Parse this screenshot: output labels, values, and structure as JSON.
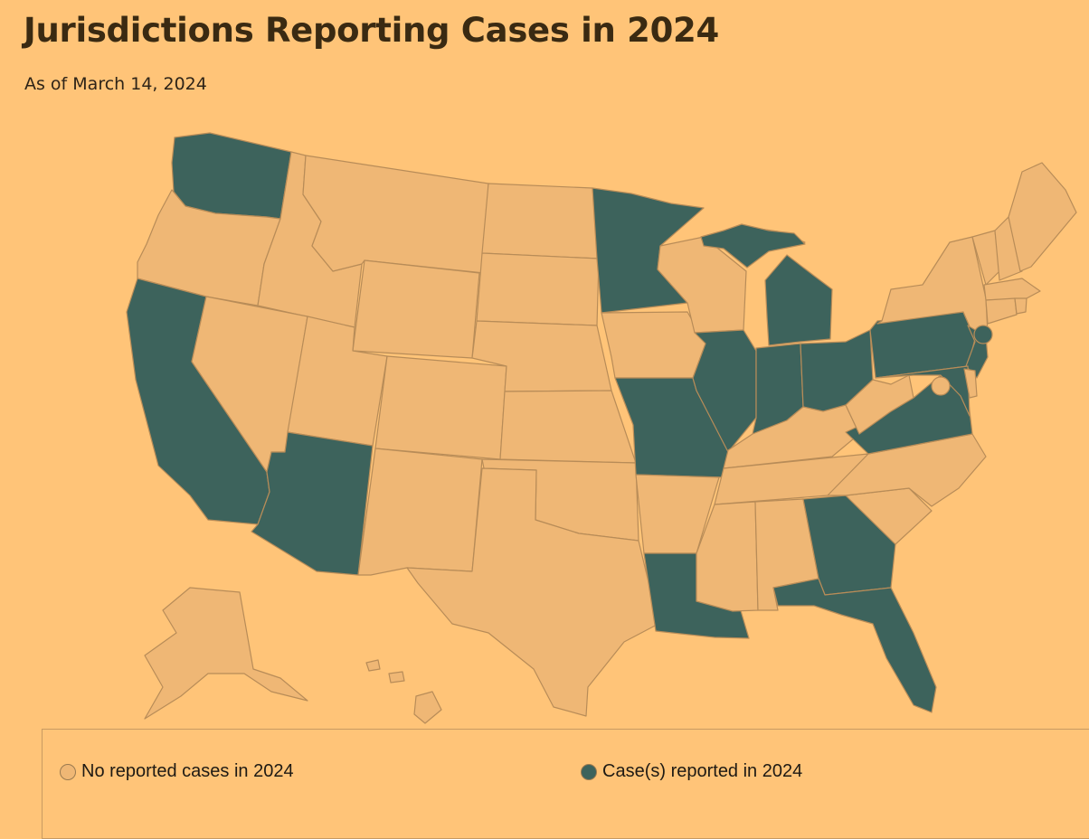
{
  "header": {
    "title": "Jurisdictions Reporting Cases in 2024",
    "subtitle": "As of March 14, 2024"
  },
  "colors": {
    "no_cases": "#efb775",
    "cases": "#3d635c",
    "border": "#b88c58"
  },
  "legend": [
    {
      "key": "no_cases",
      "label": "No reported cases in 2024"
    },
    {
      "key": "cases",
      "label": "Case(s) reported in 2024"
    }
  ],
  "states_with_cases": [
    "WA",
    "CA",
    "AZ",
    "MN",
    "MO",
    "LA",
    "IL",
    "IN",
    "MI",
    "OH",
    "GA",
    "FL",
    "PA",
    "VA",
    "NJ",
    "MD",
    "NYC"
  ],
  "states_no_cases": [
    "OR",
    "ID",
    "MT",
    "WY",
    "NV",
    "UT",
    "CO",
    "NM",
    "TX",
    "ND",
    "SD",
    "NE",
    "KS",
    "OK",
    "IA",
    "AR",
    "MS",
    "AL",
    "TN",
    "KY",
    "WI",
    "WV",
    "NC",
    "SC",
    "NY",
    "VT",
    "NH",
    "ME",
    "MA",
    "CT",
    "RI",
    "DE",
    "AK",
    "HI",
    "DC"
  ]
}
